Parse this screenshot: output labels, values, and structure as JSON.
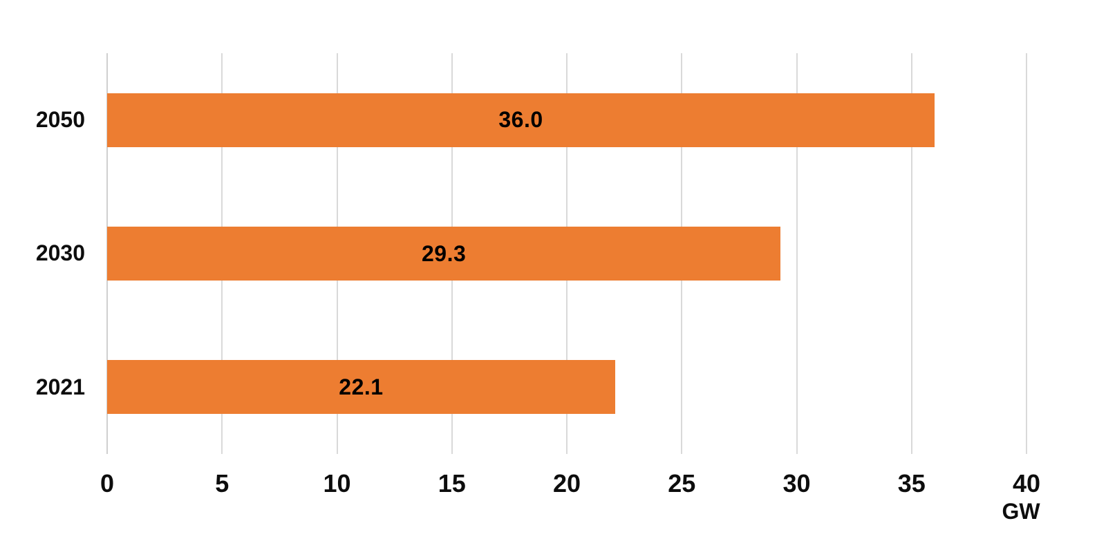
{
  "chart_data": {
    "type": "bar",
    "orientation": "horizontal",
    "title": "",
    "xlabel": "GW",
    "ylabel": "",
    "categories": [
      "2050",
      "2030",
      "2021"
    ],
    "values": [
      36.0,
      29.3,
      22.1
    ],
    "data_labels": [
      "36.0",
      "29.3",
      "22.1"
    ],
    "xlim": [
      0,
      40
    ],
    "xticks": [
      0,
      5,
      10,
      15,
      20,
      25,
      30,
      35,
      40
    ],
    "grid": true,
    "legend": "none",
    "bar_color": "#ED7D31",
    "gridline_color": "#D9D9D9",
    "axis_line_color": "#CFCFCF",
    "label_color": "#000000"
  }
}
